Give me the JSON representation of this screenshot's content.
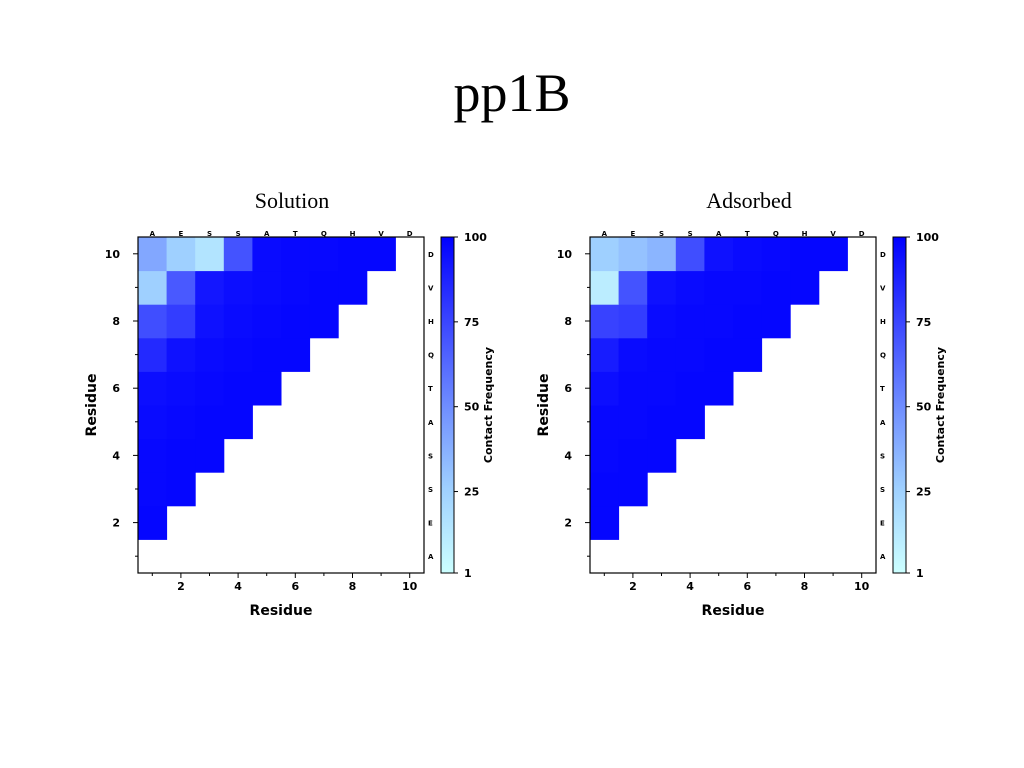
{
  "slide": {
    "title": "pp1B"
  },
  "chart_data": [
    {
      "type": "heatmap",
      "title": "Solution",
      "xlabel": "Residue",
      "ylabel": "Residue",
      "x_ticks": [
        2,
        4,
        6,
        8,
        10
      ],
      "y_ticks": [
        2,
        4,
        6,
        8,
        10
      ],
      "xlim": [
        0.5,
        10.5
      ],
      "ylim": [
        0.5,
        10.5
      ],
      "residues": [
        "A",
        "E",
        "S",
        "S",
        "A",
        "T",
        "Q",
        "H",
        "V",
        "D"
      ],
      "colorbar": {
        "label": "Contact Frequency",
        "ticks": [
          1,
          25,
          50,
          75,
          100
        ],
        "min_color": "#ccffff",
        "max_color": "#0000ff"
      },
      "cells": [
        {
          "x": 1,
          "y": 2,
          "value": 98
        },
        {
          "x": 1,
          "y": 3,
          "value": 97
        },
        {
          "x": 2,
          "y": 3,
          "value": 98
        },
        {
          "x": 1,
          "y": 4,
          "value": 97
        },
        {
          "x": 2,
          "y": 4,
          "value": 98
        },
        {
          "x": 3,
          "y": 4,
          "value": 98
        },
        {
          "x": 1,
          "y": 5,
          "value": 96
        },
        {
          "x": 2,
          "y": 5,
          "value": 97
        },
        {
          "x": 3,
          "y": 5,
          "value": 98
        },
        {
          "x": 4,
          "y": 5,
          "value": 98
        },
        {
          "x": 1,
          "y": 6,
          "value": 95
        },
        {
          "x": 2,
          "y": 6,
          "value": 96
        },
        {
          "x": 3,
          "y": 6,
          "value": 97
        },
        {
          "x": 4,
          "y": 6,
          "value": 98
        },
        {
          "x": 5,
          "y": 6,
          "value": 98
        },
        {
          "x": 1,
          "y": 7,
          "value": 85
        },
        {
          "x": 2,
          "y": 7,
          "value": 94
        },
        {
          "x": 3,
          "y": 7,
          "value": 96
        },
        {
          "x": 4,
          "y": 7,
          "value": 97
        },
        {
          "x": 5,
          "y": 7,
          "value": 98
        },
        {
          "x": 6,
          "y": 7,
          "value": 98
        },
        {
          "x": 1,
          "y": 8,
          "value": 72
        },
        {
          "x": 2,
          "y": 8,
          "value": 78
        },
        {
          "x": 3,
          "y": 8,
          "value": 94
        },
        {
          "x": 4,
          "y": 8,
          "value": 96
        },
        {
          "x": 5,
          "y": 8,
          "value": 97
        },
        {
          "x": 6,
          "y": 8,
          "value": 98
        },
        {
          "x": 7,
          "y": 8,
          "value": 98
        },
        {
          "x": 1,
          "y": 9,
          "value": 25
        },
        {
          "x": 2,
          "y": 9,
          "value": 68
        },
        {
          "x": 3,
          "y": 9,
          "value": 92
        },
        {
          "x": 4,
          "y": 9,
          "value": 95
        },
        {
          "x": 5,
          "y": 9,
          "value": 96
        },
        {
          "x": 6,
          "y": 9,
          "value": 97
        },
        {
          "x": 7,
          "y": 9,
          "value": 98
        },
        {
          "x": 8,
          "y": 9,
          "value": 98
        },
        {
          "x": 1,
          "y": 10,
          "value": 40
        },
        {
          "x": 2,
          "y": 10,
          "value": 25
        },
        {
          "x": 3,
          "y": 10,
          "value": 15
        },
        {
          "x": 4,
          "y": 10,
          "value": 70
        },
        {
          "x": 5,
          "y": 10,
          "value": 96
        },
        {
          "x": 6,
          "y": 10,
          "value": 97
        },
        {
          "x": 7,
          "y": 10,
          "value": 97
        },
        {
          "x": 8,
          "y": 10,
          "value": 98
        },
        {
          "x": 9,
          "y": 10,
          "value": 98
        }
      ]
    },
    {
      "type": "heatmap",
      "title": "Adsorbed",
      "xlabel": "Residue",
      "ylabel": "Residue",
      "x_ticks": [
        2,
        4,
        6,
        8,
        10
      ],
      "y_ticks": [
        2,
        4,
        6,
        8,
        10
      ],
      "xlim": [
        0.5,
        10.5
      ],
      "ylim": [
        0.5,
        10.5
      ],
      "residues": [
        "A",
        "E",
        "S",
        "S",
        "A",
        "T",
        "Q",
        "H",
        "V",
        "D"
      ],
      "colorbar": {
        "label": "Contact Frequency",
        "ticks": [
          1,
          25,
          50,
          75,
          100
        ],
        "min_color": "#ccffff",
        "max_color": "#0000ff"
      },
      "cells": [
        {
          "x": 1,
          "y": 2,
          "value": 98
        },
        {
          "x": 1,
          "y": 3,
          "value": 98
        },
        {
          "x": 2,
          "y": 3,
          "value": 98
        },
        {
          "x": 1,
          "y": 4,
          "value": 97
        },
        {
          "x": 2,
          "y": 4,
          "value": 98
        },
        {
          "x": 3,
          "y": 4,
          "value": 98
        },
        {
          "x": 1,
          "y": 5,
          "value": 97
        },
        {
          "x": 2,
          "y": 5,
          "value": 97
        },
        {
          "x": 3,
          "y": 5,
          "value": 98
        },
        {
          "x": 4,
          "y": 5,
          "value": 98
        },
        {
          "x": 1,
          "y": 6,
          "value": 95
        },
        {
          "x": 2,
          "y": 6,
          "value": 97
        },
        {
          "x": 3,
          "y": 6,
          "value": 97
        },
        {
          "x": 4,
          "y": 6,
          "value": 98
        },
        {
          "x": 5,
          "y": 6,
          "value": 98
        },
        {
          "x": 1,
          "y": 7,
          "value": 90
        },
        {
          "x": 2,
          "y": 7,
          "value": 96
        },
        {
          "x": 3,
          "y": 7,
          "value": 97
        },
        {
          "x": 4,
          "y": 7,
          "value": 97
        },
        {
          "x": 5,
          "y": 7,
          "value": 98
        },
        {
          "x": 6,
          "y": 7,
          "value": 98
        },
        {
          "x": 1,
          "y": 8,
          "value": 76
        },
        {
          "x": 2,
          "y": 8,
          "value": 78
        },
        {
          "x": 3,
          "y": 8,
          "value": 96
        },
        {
          "x": 4,
          "y": 8,
          "value": 97
        },
        {
          "x": 5,
          "y": 8,
          "value": 97
        },
        {
          "x": 6,
          "y": 8,
          "value": 98
        },
        {
          "x": 7,
          "y": 8,
          "value": 98
        },
        {
          "x": 1,
          "y": 9,
          "value": 10
        },
        {
          "x": 2,
          "y": 9,
          "value": 70
        },
        {
          "x": 3,
          "y": 9,
          "value": 94
        },
        {
          "x": 4,
          "y": 9,
          "value": 96
        },
        {
          "x": 5,
          "y": 9,
          "value": 97
        },
        {
          "x": 6,
          "y": 9,
          "value": 97
        },
        {
          "x": 7,
          "y": 9,
          "value": 98
        },
        {
          "x": 8,
          "y": 9,
          "value": 98
        },
        {
          "x": 1,
          "y": 10,
          "value": 25
        },
        {
          "x": 2,
          "y": 10,
          "value": 30
        },
        {
          "x": 3,
          "y": 10,
          "value": 35
        },
        {
          "x": 4,
          "y": 10,
          "value": 72
        },
        {
          "x": 5,
          "y": 10,
          "value": 94
        },
        {
          "x": 6,
          "y": 10,
          "value": 96
        },
        {
          "x": 7,
          "y": 10,
          "value": 97
        },
        {
          "x": 8,
          "y": 10,
          "value": 98
        },
        {
          "x": 9,
          "y": 10,
          "value": 98
        }
      ]
    }
  ]
}
